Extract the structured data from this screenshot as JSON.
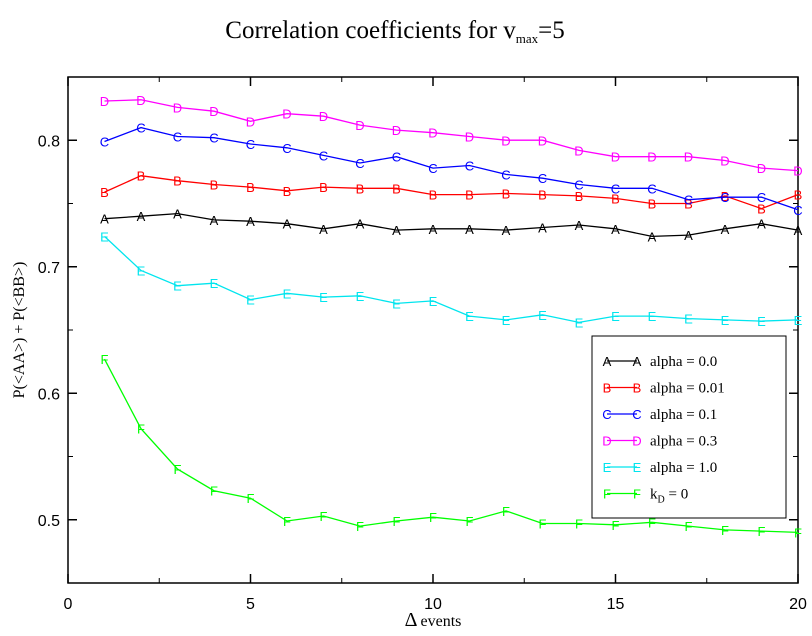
{
  "chart_data": {
    "type": "line",
    "title": "Correlation coefficients for v",
    "title_sub": "max",
    "title_suffix": "=5",
    "xlabel_symbol": "Δ",
    "xlabel_text": "events",
    "ylabel": "P(<AA>) + P(<BB>)",
    "xlim": [
      0,
      20
    ],
    "ylim": [
      0.45,
      0.85
    ],
    "x_ticks": [
      0,
      5,
      10,
      15,
      20
    ],
    "y_ticks": [
      0.5,
      0.6,
      0.7,
      0.8
    ],
    "grid": false,
    "legend_position": "bottom-right",
    "x": [
      1,
      2,
      3,
      4,
      5,
      6,
      7,
      8,
      9,
      10,
      11,
      12,
      13,
      14,
      15,
      16,
      17,
      18,
      19,
      20
    ],
    "series": [
      {
        "name": "alpha = 0.0",
        "marker": "A",
        "color": "#000000",
        "values": [
          0.738,
          0.74,
          0.742,
          0.737,
          0.736,
          0.734,
          0.73,
          0.734,
          0.729,
          0.73,
          0.73,
          0.729,
          0.731,
          0.733,
          0.73,
          0.724,
          0.725,
          0.73,
          0.734,
          0.729
        ]
      },
      {
        "name": "alpha = 0.01",
        "marker": "B",
        "color": "#ff0000",
        "values": [
          0.759,
          0.772,
          0.768,
          0.765,
          0.763,
          0.76,
          0.763,
          0.762,
          0.762,
          0.757,
          0.757,
          0.758,
          0.757,
          0.756,
          0.754,
          0.75,
          0.75,
          0.756,
          0.746,
          0.757
        ]
      },
      {
        "name": "alpha = 0.1",
        "marker": "C",
        "color": "#0000ff",
        "values": [
          0.799,
          0.81,
          0.803,
          0.802,
          0.797,
          0.794,
          0.788,
          0.782,
          0.787,
          0.778,
          0.78,
          0.773,
          0.77,
          0.765,
          0.762,
          0.762,
          0.753,
          0.755,
          0.755,
          0.745
        ]
      },
      {
        "name": "alpha = 0.3",
        "marker": "D",
        "color": "#ff00ff",
        "values": [
          0.831,
          0.832,
          0.826,
          0.823,
          0.815,
          0.821,
          0.819,
          0.812,
          0.808,
          0.806,
          0.803,
          0.8,
          0.8,
          0.792,
          0.787,
          0.787,
          0.787,
          0.784,
          0.778,
          0.776
        ]
      },
      {
        "name": "alpha = 1.0",
        "marker": "E",
        "color": "#00e5ee",
        "values": [
          0.724,
          0.697,
          0.685,
          0.687,
          0.674,
          0.679,
          0.676,
          0.677,
          0.671,
          0.673,
          0.661,
          0.658,
          0.662,
          0.656,
          0.661,
          0.661,
          0.659,
          0.658,
          0.657,
          0.658
        ]
      },
      {
        "name": "k",
        "name_sub": "D",
        "name_suffix": " = 0",
        "marker": "F",
        "color": "#00ff00",
        "values": [
          0.627,
          0.572,
          0.54,
          0.523,
          0.517,
          0.499,
          0.503,
          0.495,
          0.499,
          0.502,
          0.499,
          0.507,
          0.497,
          0.497,
          0.496,
          0.498,
          0.495,
          0.492,
          0.491,
          0.49
        ]
      }
    ]
  }
}
